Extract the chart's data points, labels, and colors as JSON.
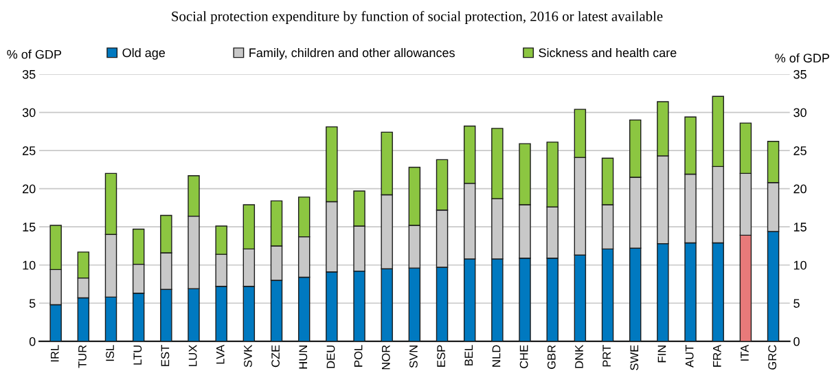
{
  "chart_data": {
    "type": "bar",
    "stacked": true,
    "title": "Social protection expenditure by function of social protection, 2016 or latest available",
    "ylabel": "% of GDP",
    "y2label": "% of GDP",
    "categories": [
      "IRL",
      "TUR",
      "ISL",
      "LTU",
      "EST",
      "LUX",
      "LVA",
      "SVK",
      "CZE",
      "HUN",
      "DEU",
      "POL",
      "NOR",
      "SVN",
      "ESP",
      "BEL",
      "NLD",
      "CHE",
      "GBR",
      "DNK",
      "PRT",
      "SWE",
      "FIN",
      "AUT",
      "FRA",
      "ITA",
      "GRC"
    ],
    "series": [
      {
        "name": "Old age",
        "color": "#0079c0",
        "colors": [
          "#0079c0",
          "#0079c0",
          "#0079c0",
          "#0079c0",
          "#0079c0",
          "#0079c0",
          "#0079c0",
          "#0079c0",
          "#0079c0",
          "#0079c0",
          "#0079c0",
          "#0079c0",
          "#0079c0",
          "#0079c0",
          "#0079c0",
          "#0079c0",
          "#0079c0",
          "#0079c0",
          "#0079c0",
          "#0079c0",
          "#0079c0",
          "#0079c0",
          "#0079c0",
          "#0079c0",
          "#0079c0",
          "#e87a7a",
          "#0079c0"
        ],
        "values": [
          4.8,
          5.7,
          5.8,
          6.3,
          6.8,
          6.9,
          7.2,
          7.2,
          8.0,
          8.4,
          9.1,
          9.2,
          9.5,
          9.6,
          9.7,
          10.8,
          10.8,
          10.9,
          10.9,
          11.3,
          12.1,
          12.2,
          12.8,
          12.9,
          12.9,
          13.9,
          14.4
        ]
      },
      {
        "name": "Family, children and other allowances",
        "color": "#c8c8c8",
        "values": [
          4.6,
          2.6,
          8.2,
          3.8,
          4.8,
          9.5,
          4.2,
          4.9,
          4.5,
          5.3,
          9.2,
          5.9,
          9.7,
          5.6,
          7.5,
          9.9,
          7.9,
          7.0,
          6.7,
          12.8,
          5.8,
          9.3,
          11.5,
          9.0,
          10.0,
          8.1,
          6.4
        ]
      },
      {
        "name": "Sickness and health care",
        "color": "#8cc641",
        "values": [
          5.8,
          3.4,
          8.0,
          4.6,
          4.9,
          5.3,
          3.7,
          5.8,
          5.9,
          5.2,
          9.8,
          4.6,
          8.2,
          7.6,
          6.6,
          7.5,
          9.2,
          8.0,
          8.5,
          6.3,
          6.1,
          7.5,
          7.1,
          7.5,
          9.2,
          6.6,
          5.4
        ]
      }
    ],
    "ylim": [
      0,
      35
    ],
    "yticks": [
      0,
      5,
      10,
      15,
      20,
      25,
      30,
      35
    ],
    "y2lim": [
      0,
      35
    ],
    "y2ticks": [
      0,
      5,
      10,
      15,
      20,
      25,
      30,
      35
    ],
    "grid": "y",
    "legend": "top"
  }
}
